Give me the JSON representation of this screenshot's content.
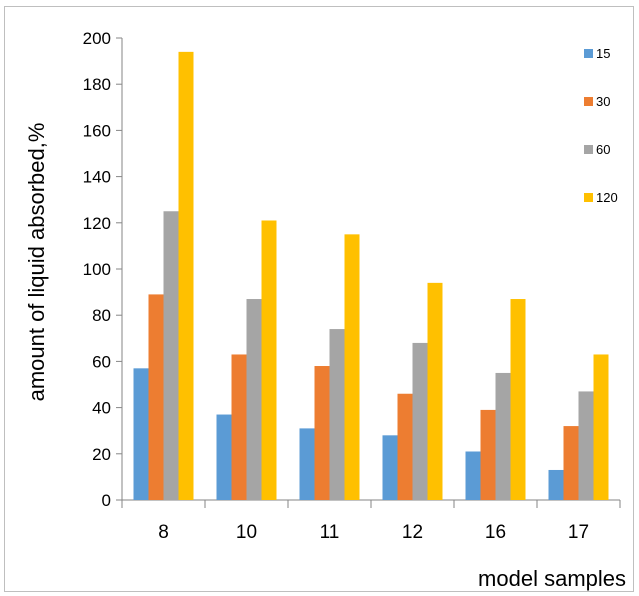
{
  "chart_data": {
    "type": "bar",
    "title": "",
    "xlabel": "model samples",
    "ylabel": "amount of liquid absorbed,%",
    "categories": [
      "8",
      "10",
      "11",
      "12",
      "16",
      "17"
    ],
    "ylim": [
      0,
      200
    ],
    "yticks": [
      0,
      20,
      40,
      60,
      80,
      100,
      120,
      140,
      160,
      180,
      200
    ],
    "grid": false,
    "legend_position": "top-right",
    "series": [
      {
        "name": "15",
        "color": "#5b9bd5",
        "values": [
          57,
          37,
          31,
          28,
          21,
          13
        ]
      },
      {
        "name": "30",
        "color": "#ed7d31",
        "values": [
          89,
          63,
          58,
          46,
          39,
          32
        ]
      },
      {
        "name": "60",
        "color": "#a5a5a5",
        "values": [
          125,
          87,
          74,
          68,
          55,
          47
        ]
      },
      {
        "name": "120",
        "color": "#ffc000",
        "values": [
          194,
          121,
          115,
          94,
          87,
          63
        ]
      }
    ]
  }
}
